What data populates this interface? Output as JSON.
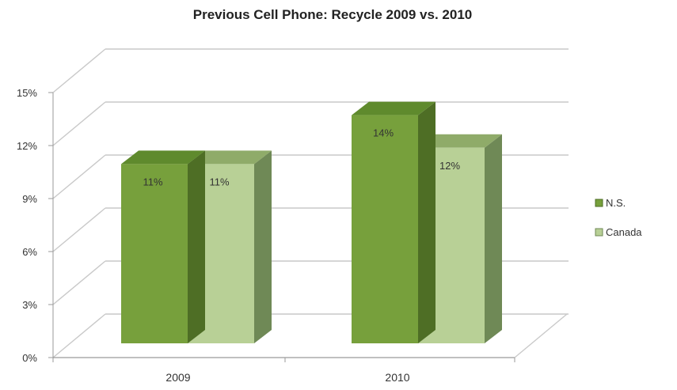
{
  "chart_data": {
    "type": "bar",
    "title": "Previous Cell Phone: Recycle 2009 vs. 2010",
    "xlabel": "",
    "ylabel": "",
    "categories": [
      "2009",
      "2010"
    ],
    "series": [
      {
        "name": "N.S.",
        "values": [
          11,
          14
        ],
        "labels": [
          "11%",
          "14%"
        ]
      },
      {
        "name": "Canada",
        "values": [
          11,
          12
        ],
        "labels": [
          "11%",
          "12%"
        ]
      }
    ],
    "ylim": [
      0,
      15
    ],
    "yticks": [
      0,
      3,
      6,
      9,
      12,
      15
    ],
    "ytick_labels": [
      "0%",
      "3%",
      "6%",
      "9%",
      "12%",
      "15%"
    ],
    "grid": true,
    "three_d": true,
    "legend_position": "right",
    "colors": {
      "ns_front": "#77a03c",
      "ns_top": "#5f8a2d",
      "ns_side": "#4e6e25",
      "canada_front": "#b8d096",
      "canada_top": "#8fab69",
      "canada_side": "#6f8956",
      "grid": "#c9c9c9",
      "axis": "#9a9a9a"
    }
  }
}
